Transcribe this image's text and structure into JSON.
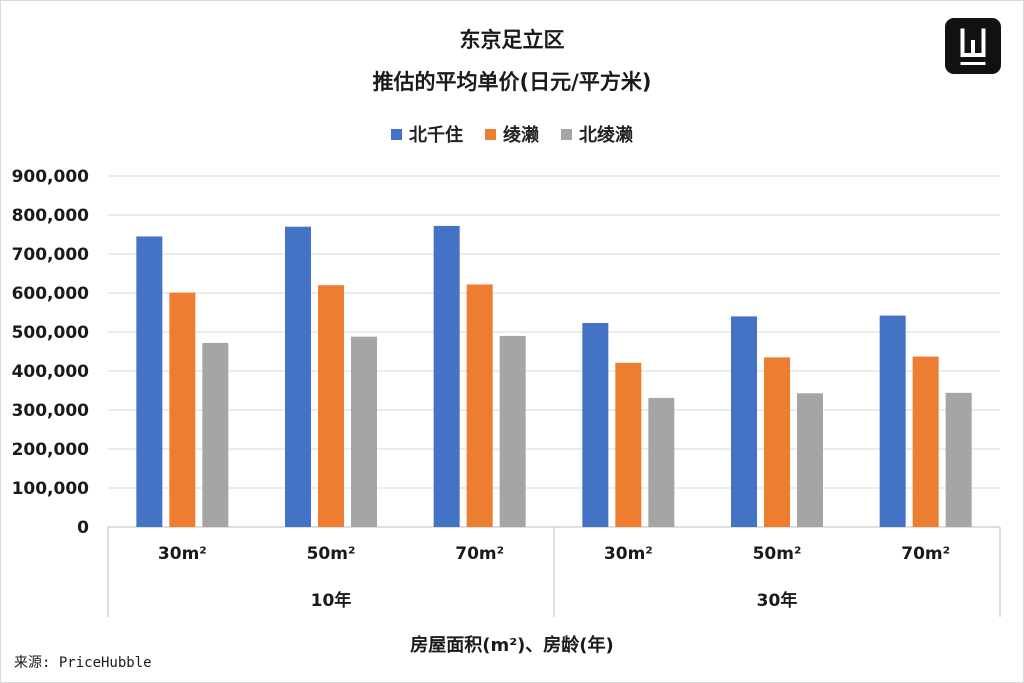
{
  "chart_data": {
    "type": "bar",
    "title": "东京足立区",
    "subtitle": "推估的平均单价(日元/平方米)",
    "xlabel": "房屋面积(m²)、房龄(年)",
    "ylabel": "",
    "categories": [
      "30m²",
      "50m²",
      "70m²",
      "30m²",
      "50m²",
      "70m²"
    ],
    "groups": [
      {
        "label": "10年",
        "categories": [
          "30m²",
          "50m²",
          "70m²"
        ]
      },
      {
        "label": "30年",
        "categories": [
          "30m²",
          "50m²",
          "70m²"
        ]
      }
    ],
    "series": [
      {
        "name": "北千住",
        "color": "#4472C4",
        "values": [
          745000,
          770000,
          772000,
          523000,
          540000,
          542000
        ]
      },
      {
        "name": "绫濑",
        "color": "#ED7D31",
        "values": [
          601000,
          620000,
          622000,
          421000,
          435000,
          437000
        ]
      },
      {
        "name": "北绫濑",
        "color": "#A5A5A5",
        "values": [
          472000,
          488000,
          490000,
          331000,
          343000,
          344000
        ]
      }
    ],
    "ylim": [
      0,
      900000
    ],
    "yticks": [
      "0",
      "100,000",
      "200,000",
      "300,000",
      "400,000",
      "500,000",
      "600,000",
      "700,000",
      "800,000",
      "900,000"
    ],
    "grid": true,
    "legend_position": "top"
  },
  "source": "来源: PriceHubble",
  "logo": "W-logo-icon"
}
